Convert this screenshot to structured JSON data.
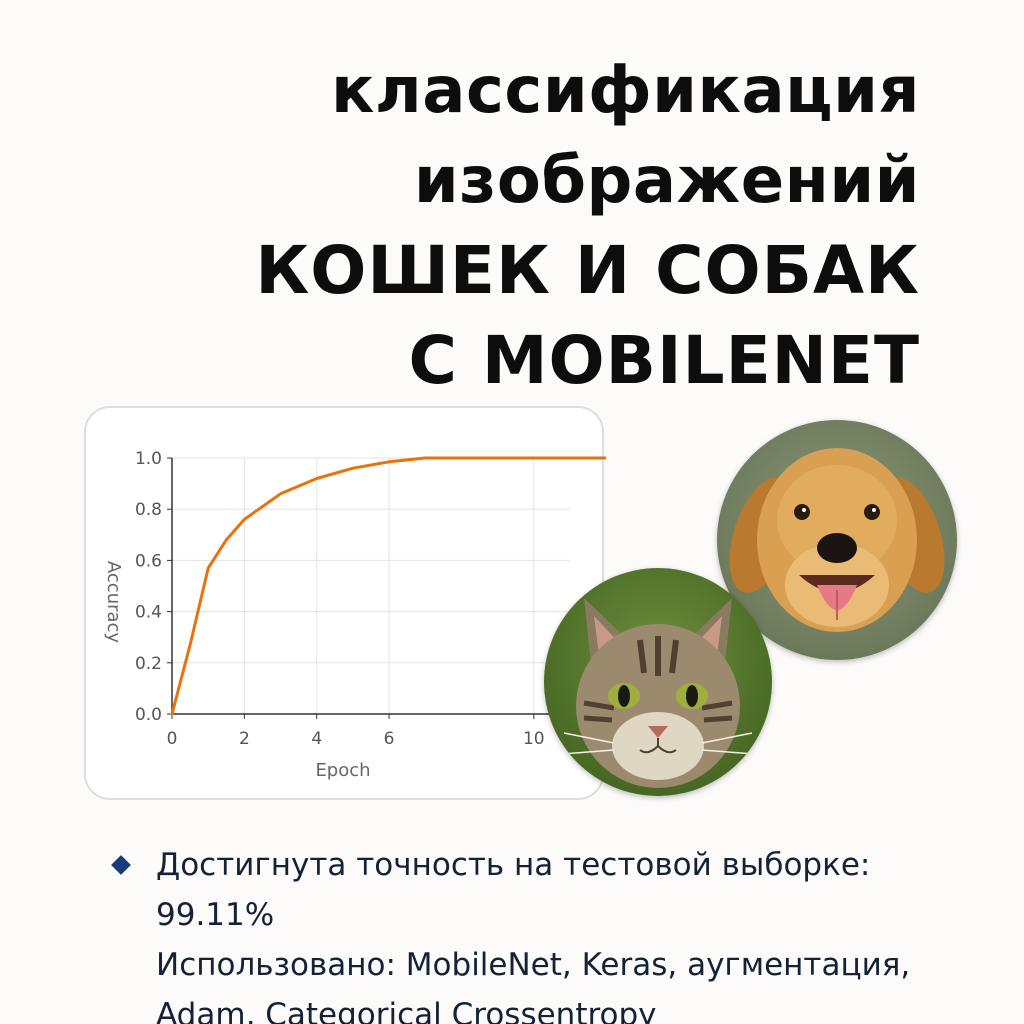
{
  "title": {
    "line1": "классификация",
    "line2": "изображений",
    "line3": "КОШЕК И СОБАК",
    "line4": "С MOBILENET"
  },
  "chart_data": {
    "type": "line",
    "xlabel": "Epoch",
    "ylabel": "Accuracy",
    "x_ticks": [
      0,
      2,
      4,
      6,
      10
    ],
    "x_tick_labels": [
      "0",
      "2",
      "4",
      "6",
      "10"
    ],
    "y_ticks": [
      0.0,
      0.2,
      0.4,
      0.6,
      0.8,
      1.0
    ],
    "y_tick_labels": [
      "0.0",
      "0.2",
      "0.4",
      "0.6",
      "0.8",
      "1.0"
    ],
    "grid": true,
    "series": [
      {
        "color": "#e8730c",
        "points": [
          [
            0,
            0.0
          ],
          [
            0.5,
            0.27
          ],
          [
            1,
            0.57
          ],
          [
            1.5,
            0.68
          ],
          [
            2,
            0.76
          ],
          [
            3,
            0.86
          ],
          [
            4,
            0.92
          ],
          [
            5,
            0.96
          ],
          [
            6,
            0.985
          ],
          [
            7,
            1.0
          ],
          [
            8,
            1.0
          ],
          [
            9,
            1.0
          ],
          [
            10,
            1.0
          ],
          [
            12,
            1.0
          ]
        ]
      }
    ]
  },
  "images": {
    "dog": "golden-retriever-photo",
    "cat": "tabby-cat-photo"
  },
  "bullets": [
    {
      "lines": [
        "Достигнута точность на тестовой выборке:",
        "99.11%",
        "Использовано: MobileNet, Keras, аугментация,",
        "Adam, Categorical Crossentropy"
      ]
    }
  ],
  "colors": {
    "accent_line": "#e8730c",
    "bullet": "#173c78",
    "text": "#132238"
  }
}
